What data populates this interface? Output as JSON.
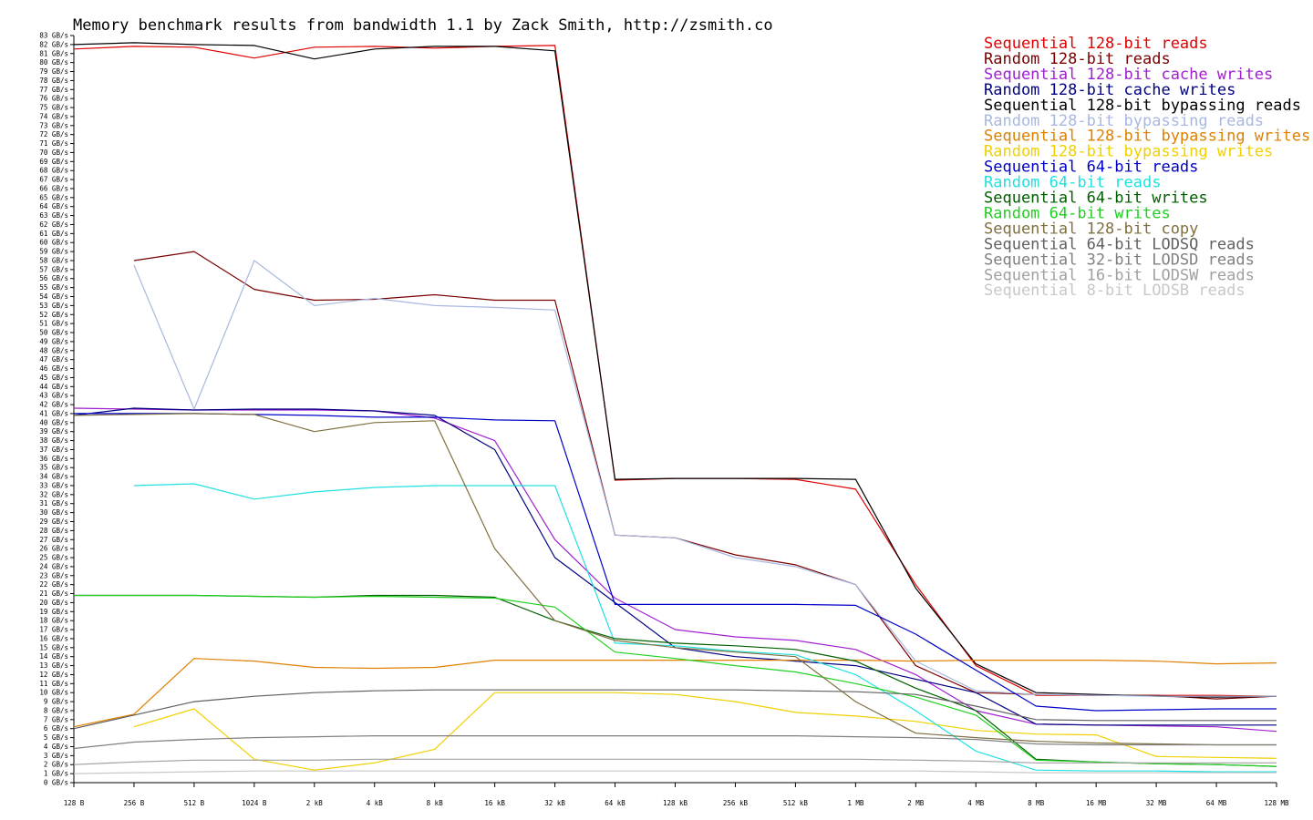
{
  "chart_data": {
    "type": "line",
    "title": "Memory benchmark results from bandwidth 1.1 by Zack Smith, http://zsmith.co",
    "xlabel": "",
    "ylabel": "",
    "x_scale": "log2",
    "x": [
      "128 B",
      "256 B",
      "512 B",
      "1024 B",
      "2 kB",
      "4 kB",
      "8 kB",
      "16 kB",
      "32 kB",
      "64 kB",
      "128 kB",
      "256 kB",
      "512 kB",
      "1 MB",
      "2 MB",
      "4 MB",
      "8 MB",
      "16 MB",
      "32 MB",
      "64 MB",
      "128 MB"
    ],
    "y_ticks": [
      "0 GB/s",
      "1 GB/s",
      "2 GB/s",
      "3 GB/s",
      "4 GB/s",
      "5 GB/s",
      "6 GB/s",
      "7 GB/s",
      "8 GB/s",
      "9 GB/s",
      "10 GB/s",
      "11 GB/s",
      "12 GB/s",
      "13 GB/s",
      "14 GB/s",
      "15 GB/s",
      "16 GB/s",
      "17 GB/s",
      "18 GB/s",
      "19 GB/s",
      "20 GB/s",
      "21 GB/s",
      "22 GB/s",
      "23 GB/s",
      "24 GB/s",
      "25 GB/s",
      "26 GB/s",
      "27 GB/s",
      "28 GB/s",
      "29 GB/s",
      "30 GB/s",
      "31 GB/s",
      "32 GB/s",
      "33 GB/s",
      "34 GB/s",
      "35 GB/s",
      "36 GB/s",
      "37 GB/s",
      "38 GB/s",
      "39 GB/s",
      "40 GB/s",
      "41 GB/s",
      "42 GB/s",
      "43 GB/s",
      "44 GB/s",
      "45 GB/s",
      "46 GB/s",
      "47 GB/s",
      "48 GB/s",
      "49 GB/s",
      "50 GB/s",
      "51 GB/s",
      "52 GB/s",
      "53 GB/s",
      "54 GB/s",
      "55 GB/s",
      "56 GB/s",
      "57 GB/s",
      "58 GB/s",
      "59 GB/s",
      "60 GB/s",
      "61 GB/s",
      "62 GB/s",
      "63 GB/s",
      "64 GB/s",
      "65 GB/s",
      "66 GB/s",
      "67 GB/s",
      "68 GB/s",
      "69 GB/s",
      "70 GB/s",
      "71 GB/s",
      "72 GB/s",
      "73 GB/s",
      "74 GB/s",
      "75 GB/s",
      "76 GB/s",
      "77 GB/s",
      "78 GB/s",
      "79 GB/s",
      "80 GB/s",
      "81 GB/s",
      "82 GB/s",
      "83 GB/s"
    ],
    "ylim": [
      0,
      83
    ],
    "grid": false,
    "legend_position": "top-right",
    "series": [
      {
        "name": "Sequential 128-bit reads",
        "color": "#e00000",
        "values": [
          81.5,
          81.8,
          81.7,
          80.5,
          81.7,
          81.8,
          81.6,
          81.8,
          81.9,
          33.6,
          33.8,
          33.8,
          33.7,
          32.6,
          22.0,
          13.0,
          9.7,
          9.7,
          9.7,
          9.7,
          9.6
        ]
      },
      {
        "name": "Random 128-bit reads",
        "color": "#7a0000",
        "values": [
          null,
          58.0,
          59.0,
          54.8,
          53.6,
          53.7,
          54.2,
          53.6,
          53.6,
          27.5,
          27.2,
          25.3,
          24.2,
          22.0,
          13.0,
          10.0,
          9.8,
          9.7,
          9.7,
          9.3,
          9.6
        ]
      },
      {
        "name": "Sequential 128-bit cache writes",
        "color": "#a020d0",
        "values": [
          41.6,
          41.5,
          41.4,
          41.4,
          41.4,
          41.3,
          40.5,
          38.0,
          27.0,
          20.5,
          17.0,
          16.2,
          15.8,
          14.8,
          12.0,
          8.0,
          6.5,
          6.4,
          6.3,
          6.2,
          5.7
        ]
      },
      {
        "name": "Random 128-bit cache writes",
        "color": "#000080",
        "values": [
          40.8,
          41.6,
          41.4,
          41.5,
          41.5,
          41.3,
          40.8,
          37.0,
          25.0,
          20.0,
          15.0,
          14.0,
          13.5,
          13.0,
          11.5,
          10.0,
          6.5,
          6.4,
          6.4,
          6.4,
          6.4
        ]
      },
      {
        "name": "Sequential 128-bit bypassing reads",
        "color": "#000000",
        "values": [
          82.0,
          82.2,
          82.0,
          81.9,
          80.4,
          81.5,
          81.8,
          81.8,
          81.3,
          33.7,
          33.8,
          33.8,
          33.8,
          33.7,
          21.6,
          13.2,
          10.0,
          9.8,
          9.6,
          9.5,
          9.6
        ]
      },
      {
        "name": "Random 128-bit bypassing reads",
        "color": "#a8b8e0",
        "values": [
          null,
          57.5,
          41.5,
          58.0,
          53.0,
          53.8,
          53.0,
          52.8,
          52.5,
          27.5,
          27.2,
          25.0,
          24.0,
          22.0,
          13.5,
          10.2,
          9.8,
          9.7,
          9.6,
          9.6,
          9.6
        ]
      },
      {
        "name": "Sequential 128-bit bypassing writes",
        "color": "#e08000",
        "values": [
          6.2,
          7.6,
          13.8,
          13.5,
          12.8,
          12.7,
          12.8,
          13.6,
          13.6,
          13.6,
          13.6,
          13.6,
          13.6,
          13.6,
          13.5,
          13.6,
          13.6,
          13.6,
          13.5,
          13.2,
          13.3
        ]
      },
      {
        "name": "Random 128-bit bypassing writes",
        "color": "#f0d000",
        "values": [
          null,
          6.2,
          8.2,
          2.6,
          1.4,
          2.2,
          3.7,
          10.0,
          10.0,
          10.0,
          9.8,
          9.0,
          7.8,
          7.4,
          6.8,
          5.8,
          5.4,
          5.3,
          2.9,
          2.8,
          2.7
        ]
      },
      {
        "name": "Sequential 64-bit reads",
        "color": "#0000c8",
        "values": [
          41.0,
          41.0,
          41.0,
          40.9,
          40.8,
          40.6,
          40.6,
          40.3,
          40.2,
          19.8,
          19.8,
          19.8,
          19.8,
          19.7,
          16.5,
          12.5,
          8.5,
          8.0,
          8.1,
          8.2,
          8.2
        ]
      },
      {
        "name": "Random 64-bit reads",
        "color": "#20e0e0",
        "values": [
          null,
          33.0,
          33.2,
          31.5,
          32.3,
          32.8,
          33.0,
          33.0,
          33.0,
          15.5,
          15.2,
          14.6,
          14.2,
          12.0,
          8.0,
          3.5,
          1.4,
          1.3,
          1.3,
          1.2,
          1.2
        ]
      },
      {
        "name": "Sequential 64-bit writes",
        "color": "#006000",
        "values": [
          20.8,
          20.8,
          20.8,
          20.7,
          20.6,
          20.8,
          20.8,
          20.6,
          18.0,
          16.0,
          15.5,
          15.2,
          14.8,
          13.5,
          10.5,
          8.0,
          2.6,
          2.3,
          2.1,
          2.0,
          1.8
        ]
      },
      {
        "name": "Random 64-bit writes",
        "color": "#20d020",
        "values": [
          20.8,
          20.8,
          20.8,
          20.7,
          20.6,
          20.7,
          20.6,
          20.5,
          19.5,
          14.5,
          13.8,
          13.0,
          12.3,
          11.0,
          9.5,
          7.5,
          2.5,
          2.3,
          2.1,
          2.0,
          1.8
        ]
      },
      {
        "name": "Sequential 128-bit copy",
        "color": "#807040",
        "values": [
          40.8,
          40.9,
          41.0,
          40.9,
          39.0,
          40.0,
          40.2,
          26.0,
          18.0,
          15.8,
          15.0,
          14.5,
          14.0,
          9.0,
          5.5,
          5.0,
          4.6,
          4.4,
          4.3,
          4.2,
          4.2
        ]
      },
      {
        "name": "Sequential 64-bit LODSQ reads",
        "color": "#606060",
        "values": [
          6.0,
          7.5,
          9.0,
          9.6,
          10.0,
          10.2,
          10.3,
          10.3,
          10.3,
          10.3,
          10.3,
          10.3,
          10.2,
          10.1,
          9.8,
          8.5,
          7.0,
          6.9,
          6.9,
          6.9,
          6.9
        ]
      },
      {
        "name": "Sequential 32-bit LODSD reads",
        "color": "#808080",
        "values": [
          3.8,
          4.5,
          4.8,
          5.0,
          5.1,
          5.2,
          5.2,
          5.2,
          5.2,
          5.2,
          5.2,
          5.2,
          5.2,
          5.1,
          5.0,
          4.8,
          4.3,
          4.2,
          4.2,
          4.2,
          4.2
        ]
      },
      {
        "name": "Sequential 16-bit LODSW reads",
        "color": "#a0a0a0",
        "values": [
          2.0,
          2.3,
          2.5,
          2.5,
          2.5,
          2.6,
          2.6,
          2.6,
          2.6,
          2.6,
          2.6,
          2.6,
          2.6,
          2.6,
          2.5,
          2.4,
          2.2,
          2.2,
          2.2,
          2.2,
          2.2
        ]
      },
      {
        "name": "Sequential 8-bit LODSB reads",
        "color": "#c8c8c8",
        "values": [
          1.0,
          1.1,
          1.2,
          1.3,
          1.3,
          1.3,
          1.3,
          1.3,
          1.3,
          1.3,
          1.3,
          1.3,
          1.3,
          1.3,
          1.3,
          1.2,
          1.1,
          1.1,
          1.1,
          1.1,
          1.1
        ]
      }
    ]
  }
}
